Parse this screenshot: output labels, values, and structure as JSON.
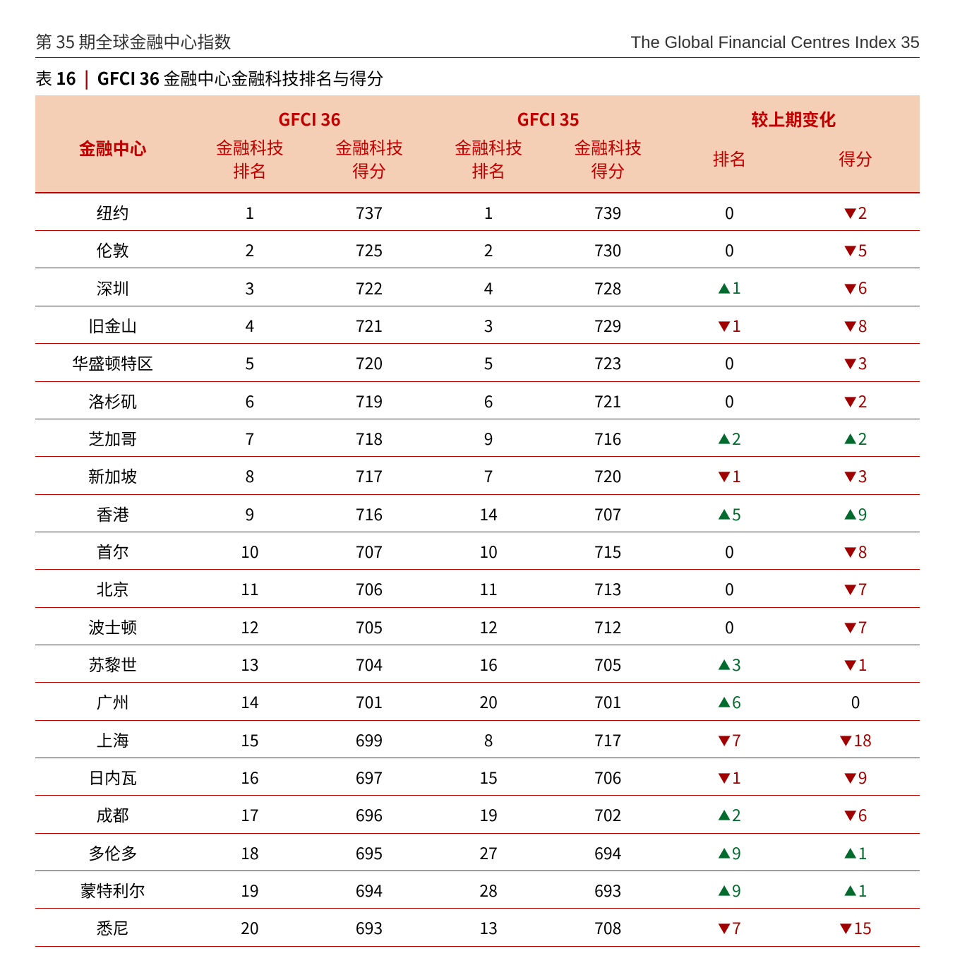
{
  "header": {
    "left": "第 35 期全球金融中心指数",
    "right": "The Global Financial Centres Index 35"
  },
  "title": {
    "prefix": "表",
    "number": "16",
    "name": "GFCI 36",
    "rest": "金融中心金融科技排名与得分"
  },
  "columns": {
    "centre": "金融中心",
    "group36": "GFCI 36",
    "group35": "GFCI 35",
    "groupChange": "较上期变化",
    "rank": "金融科技",
    "rankSub": "排名",
    "score": "金融科技",
    "scoreSub": "得分",
    "changeRank": "排名",
    "changeScore": "得分"
  },
  "glyphs": {
    "up": "▲",
    "down": "▼"
  },
  "colors": {
    "header_bg": "#f5cfb5",
    "header_text": "#c00000",
    "row_border": "#c00000",
    "up": "#006b2d",
    "down": "#a00000"
  },
  "rows": [
    {
      "centre": "纽约",
      "r36": "1",
      "s36": "737",
      "r35": "1",
      "s35": "739",
      "dr": {
        "dir": "none",
        "val": "0"
      },
      "ds": {
        "dir": "down",
        "val": "2"
      }
    },
    {
      "centre": "伦敦",
      "r36": "2",
      "s36": "725",
      "r35": "2",
      "s35": "730",
      "dr": {
        "dir": "none",
        "val": "0"
      },
      "ds": {
        "dir": "down",
        "val": "5"
      }
    },
    {
      "centre": "深圳",
      "r36": "3",
      "s36": "722",
      "r35": "4",
      "s35": "728",
      "dr": {
        "dir": "up",
        "val": "1"
      },
      "ds": {
        "dir": "down",
        "val": "6"
      }
    },
    {
      "centre": "旧金山",
      "r36": "4",
      "s36": "721",
      "r35": "3",
      "s35": "729",
      "dr": {
        "dir": "down",
        "val": "1"
      },
      "ds": {
        "dir": "down",
        "val": "8"
      }
    },
    {
      "centre": "华盛顿特区",
      "r36": "5",
      "s36": "720",
      "r35": "5",
      "s35": "723",
      "dr": {
        "dir": "none",
        "val": "0"
      },
      "ds": {
        "dir": "down",
        "val": "3"
      }
    },
    {
      "centre": "洛杉矶",
      "r36": "6",
      "s36": "719",
      "r35": "6",
      "s35": "721",
      "dr": {
        "dir": "none",
        "val": "0"
      },
      "ds": {
        "dir": "down",
        "val": "2"
      }
    },
    {
      "centre": "芝加哥",
      "r36": "7",
      "s36": "718",
      "r35": "9",
      "s35": "716",
      "dr": {
        "dir": "up",
        "val": "2"
      },
      "ds": {
        "dir": "up",
        "val": "2"
      }
    },
    {
      "centre": "新加坡",
      "r36": "8",
      "s36": "717",
      "r35": "7",
      "s35": "720",
      "dr": {
        "dir": "down",
        "val": "1"
      },
      "ds": {
        "dir": "down",
        "val": "3"
      }
    },
    {
      "centre": "香港",
      "r36": "9",
      "s36": "716",
      "r35": "14",
      "s35": "707",
      "dr": {
        "dir": "up",
        "val": "5"
      },
      "ds": {
        "dir": "up",
        "val": "9"
      }
    },
    {
      "centre": "首尔",
      "r36": "10",
      "s36": "707",
      "r35": "10",
      "s35": "715",
      "dr": {
        "dir": "none",
        "val": "0"
      },
      "ds": {
        "dir": "down",
        "val": "8"
      }
    },
    {
      "centre": "北京",
      "r36": "11",
      "s36": "706",
      "r35": "11",
      "s35": "713",
      "dr": {
        "dir": "none",
        "val": "0"
      },
      "ds": {
        "dir": "down",
        "val": "7"
      }
    },
    {
      "centre": "波士顿",
      "r36": "12",
      "s36": "705",
      "r35": "12",
      "s35": "712",
      "dr": {
        "dir": "none",
        "val": "0"
      },
      "ds": {
        "dir": "down",
        "val": "7"
      }
    },
    {
      "centre": "苏黎世",
      "r36": "13",
      "s36": "704",
      "r35": "16",
      "s35": "705",
      "dr": {
        "dir": "up",
        "val": "3"
      },
      "ds": {
        "dir": "down",
        "val": "1"
      }
    },
    {
      "centre": "广州",
      "r36": "14",
      "s36": "701",
      "r35": "20",
      "s35": "701",
      "dr": {
        "dir": "up",
        "val": "6"
      },
      "ds": {
        "dir": "none",
        "val": "0"
      }
    },
    {
      "centre": "上海",
      "r36": "15",
      "s36": "699",
      "r35": "8",
      "s35": "717",
      "dr": {
        "dir": "down",
        "val": "7"
      },
      "ds": {
        "dir": "down",
        "val": "18"
      }
    },
    {
      "centre": "日内瓦",
      "r36": "16",
      "s36": "697",
      "r35": "15",
      "s35": "706",
      "dr": {
        "dir": "down",
        "val": "1"
      },
      "ds": {
        "dir": "down",
        "val": "9"
      }
    },
    {
      "centre": "成都",
      "r36": "17",
      "s36": "696",
      "r35": "19",
      "s35": "702",
      "dr": {
        "dir": "up",
        "val": "2"
      },
      "ds": {
        "dir": "down",
        "val": "6"
      }
    },
    {
      "centre": "多伦多",
      "r36": "18",
      "s36": "695",
      "r35": "27",
      "s35": "694",
      "dr": {
        "dir": "up",
        "val": "9"
      },
      "ds": {
        "dir": "up",
        "val": "1"
      }
    },
    {
      "centre": "蒙特利尔",
      "r36": "19",
      "s36": "694",
      "r35": "28",
      "s35": "693",
      "dr": {
        "dir": "up",
        "val": "9"
      },
      "ds": {
        "dir": "up",
        "val": "1"
      }
    },
    {
      "centre": "悉尼",
      "r36": "20",
      "s36": "693",
      "r35": "13",
      "s35": "708",
      "dr": {
        "dir": "down",
        "val": "7"
      },
      "ds": {
        "dir": "down",
        "val": "15"
      }
    }
  ]
}
